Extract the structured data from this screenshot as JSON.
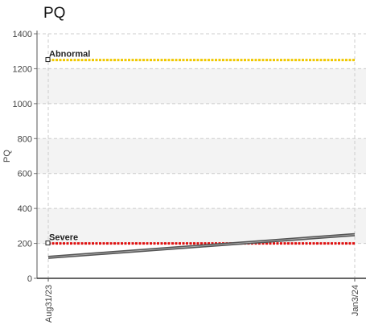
{
  "chart_data": {
    "type": "line",
    "title": "PQ",
    "ylabel": "PQ",
    "xlabel": "",
    "x": [
      "Aug31/23",
      "Jan3/24"
    ],
    "ylim": [
      0,
      1400
    ],
    "yticks": [
      0,
      200,
      400,
      600,
      800,
      1000,
      1200,
      1400
    ],
    "grid": true,
    "series": [
      {
        "values": [
          120,
          250
        ],
        "color": "#555555"
      }
    ],
    "reference_lines": [
      {
        "label": "Abnormal",
        "value": 1250,
        "color": "#f0c800"
      },
      {
        "label": "Severe",
        "value": 200,
        "color": "#e01010"
      }
    ],
    "band_color": "#f3f3f3"
  }
}
